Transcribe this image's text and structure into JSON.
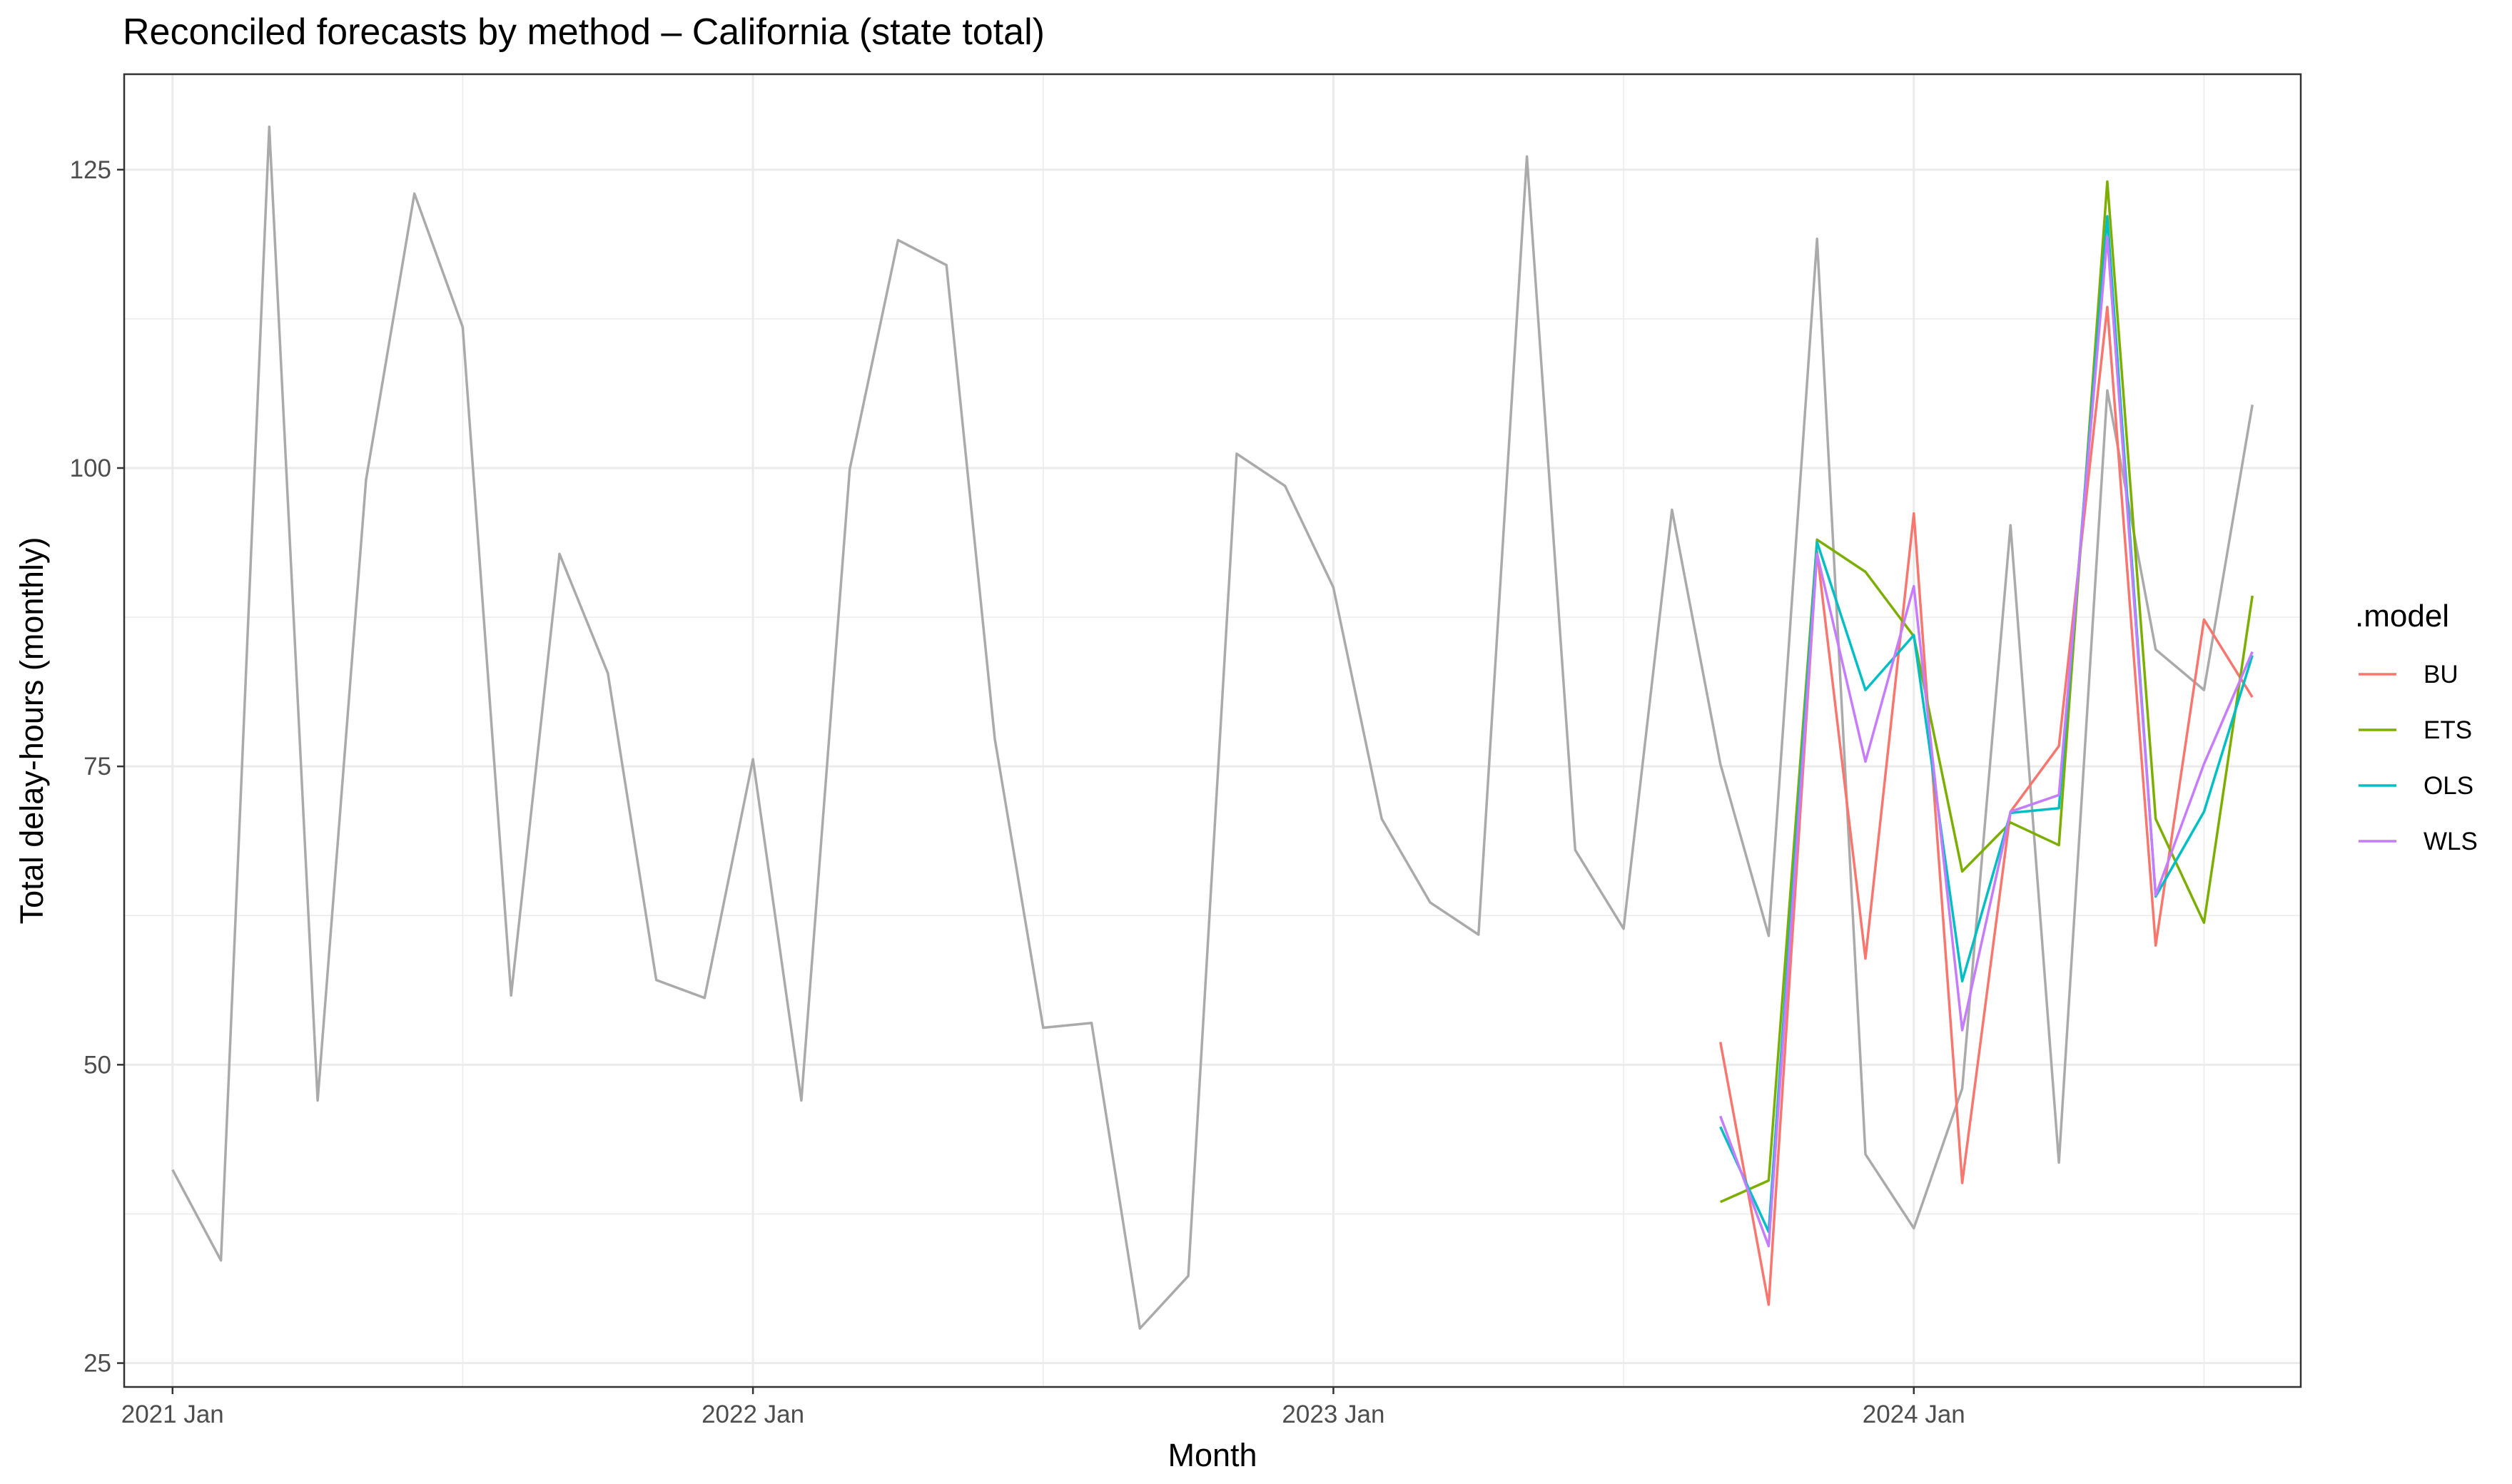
{
  "chart_data": {
    "type": "line",
    "title": "Reconciled forecasts by method – California (state total)",
    "xlabel": "Month",
    "ylabel": "Total delay-hours (monthly)",
    "x_tick_labels": [
      "2021 Jan",
      "2022 Jan",
      "2023 Jan",
      "2024 Jan"
    ],
    "y_tick_labels": [
      "25",
      "50",
      "75",
      "100",
      "125"
    ],
    "xlim": [
      "2020-12",
      "2024-09"
    ],
    "ylim": [
      23,
      133
    ],
    "grid": true,
    "legend": {
      "title": ".model",
      "position": "right"
    },
    "history": {
      "color": "#aaaaaa",
      "x": [
        "2021-01",
        "2021-02",
        "2021-03",
        "2021-04",
        "2021-05",
        "2021-06",
        "2021-07",
        "2021-08",
        "2021-09",
        "2021-10",
        "2021-11",
        "2021-12",
        "2022-01",
        "2022-02",
        "2022-03",
        "2022-04",
        "2022-05",
        "2022-06",
        "2022-07",
        "2022-08",
        "2022-09",
        "2022-10",
        "2022-11",
        "2022-12",
        "2023-01",
        "2023-02",
        "2023-03",
        "2023-04",
        "2023-05",
        "2023-06",
        "2023-07",
        "2023-08",
        "2023-09",
        "2023-10",
        "2023-11",
        "2023-12",
        "2024-01",
        "2024-02",
        "2024-03",
        "2024-04",
        "2024-05",
        "2024-06",
        "2024-07",
        "2024-08"
      ],
      "values": [
        41.2,
        33.6,
        128.6,
        47.0,
        99.0,
        123.0,
        111.8,
        55.8,
        92.8,
        82.8,
        57.1,
        55.6,
        75.6,
        47.0,
        99.9,
        119.1,
        117.0,
        77.3,
        53.1,
        53.5,
        27.9,
        32.3,
        101.2,
        98.5,
        90.0,
        70.6,
        63.6,
        60.9,
        126.1,
        68.0,
        61.4,
        96.5,
        75.2,
        60.8,
        119.2,
        42.5,
        36.3,
        48.0,
        95.2,
        41.8,
        106.5,
        84.8,
        81.4,
        105.3
      ]
    },
    "x": [
      "2023-09",
      "2023-10",
      "2023-11",
      "2023-12",
      "2024-01",
      "2024-02",
      "2024-03",
      "2024-04",
      "2024-05",
      "2024-06",
      "2024-07",
      "2024-08"
    ],
    "series": [
      {
        "name": "BU",
        "color": "#F8766D",
        "values": [
          51.9,
          29.9,
          93.0,
          58.9,
          96.2,
          40.1,
          71.2,
          76.7,
          113.5,
          60.0,
          87.3,
          80.8
        ]
      },
      {
        "name": "ETS",
        "color": "#7CAE00",
        "values": [
          38.5,
          40.3,
          94.0,
          91.3,
          85.9,
          66.2,
          70.3,
          68.4,
          124.0,
          70.6,
          61.9,
          89.3
        ]
      },
      {
        "name": "OLS",
        "color": "#00BFC4",
        "values": [
          44.8,
          36.0,
          93.8,
          81.4,
          86.0,
          57.0,
          71.1,
          71.5,
          121.1,
          64.1,
          71.2,
          84.3
        ]
      },
      {
        "name": "WLS",
        "color": "#C77CFF",
        "values": [
          45.7,
          34.8,
          92.8,
          75.4,
          90.1,
          52.9,
          71.2,
          72.6,
          119.4,
          64.2,
          75.2,
          84.6
        ]
      }
    ]
  }
}
